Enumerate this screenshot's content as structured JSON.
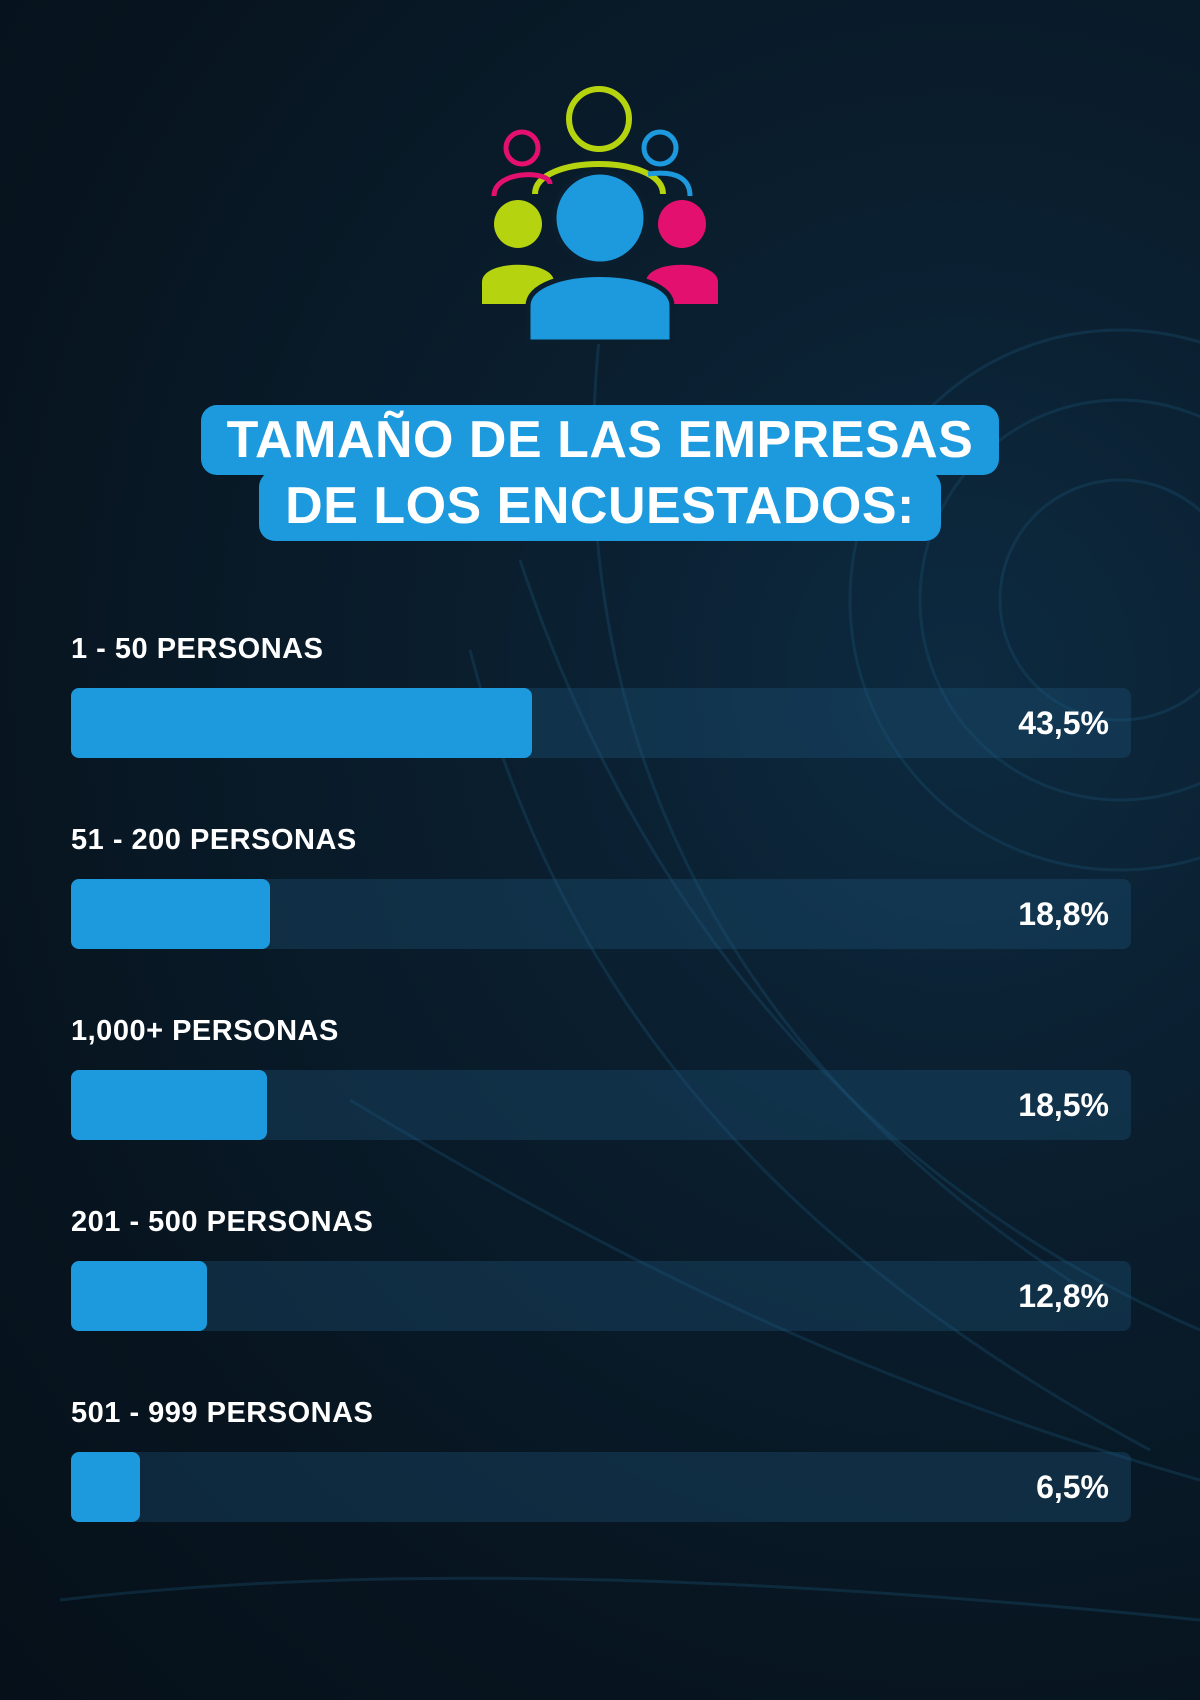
{
  "title": {
    "line1": "TAMAÑO DE LAS EMPRESAS",
    "line2": "DE LOS ENCUESTADOS:"
  },
  "header_icon": "people-group-icon",
  "colors": {
    "accent_blue": "#1d9ade",
    "lime": "#b5d30f",
    "magenta": "#e4106f",
    "track": "#16405c",
    "background": "#07141f"
  },
  "chart_data": {
    "type": "bar",
    "orientation": "horizontal",
    "title": "TAMAÑO DE LAS EMPRESAS DE LOS ENCUESTADOS:",
    "categories": [
      "1 - 50 PERSONAS",
      "51 - 200 PERSONAS",
      "1,000+ PERSONAS",
      "201 - 500 PERSONAS",
      "501 - 999 PERSONAS"
    ],
    "values": [
      43.5,
      18.8,
      18.5,
      12.8,
      6.5
    ],
    "value_labels": [
      "43,5%",
      "18,8%",
      "18,5%",
      "12,8%",
      "6,5%"
    ],
    "xlim": [
      0,
      100
    ],
    "grid": false
  }
}
